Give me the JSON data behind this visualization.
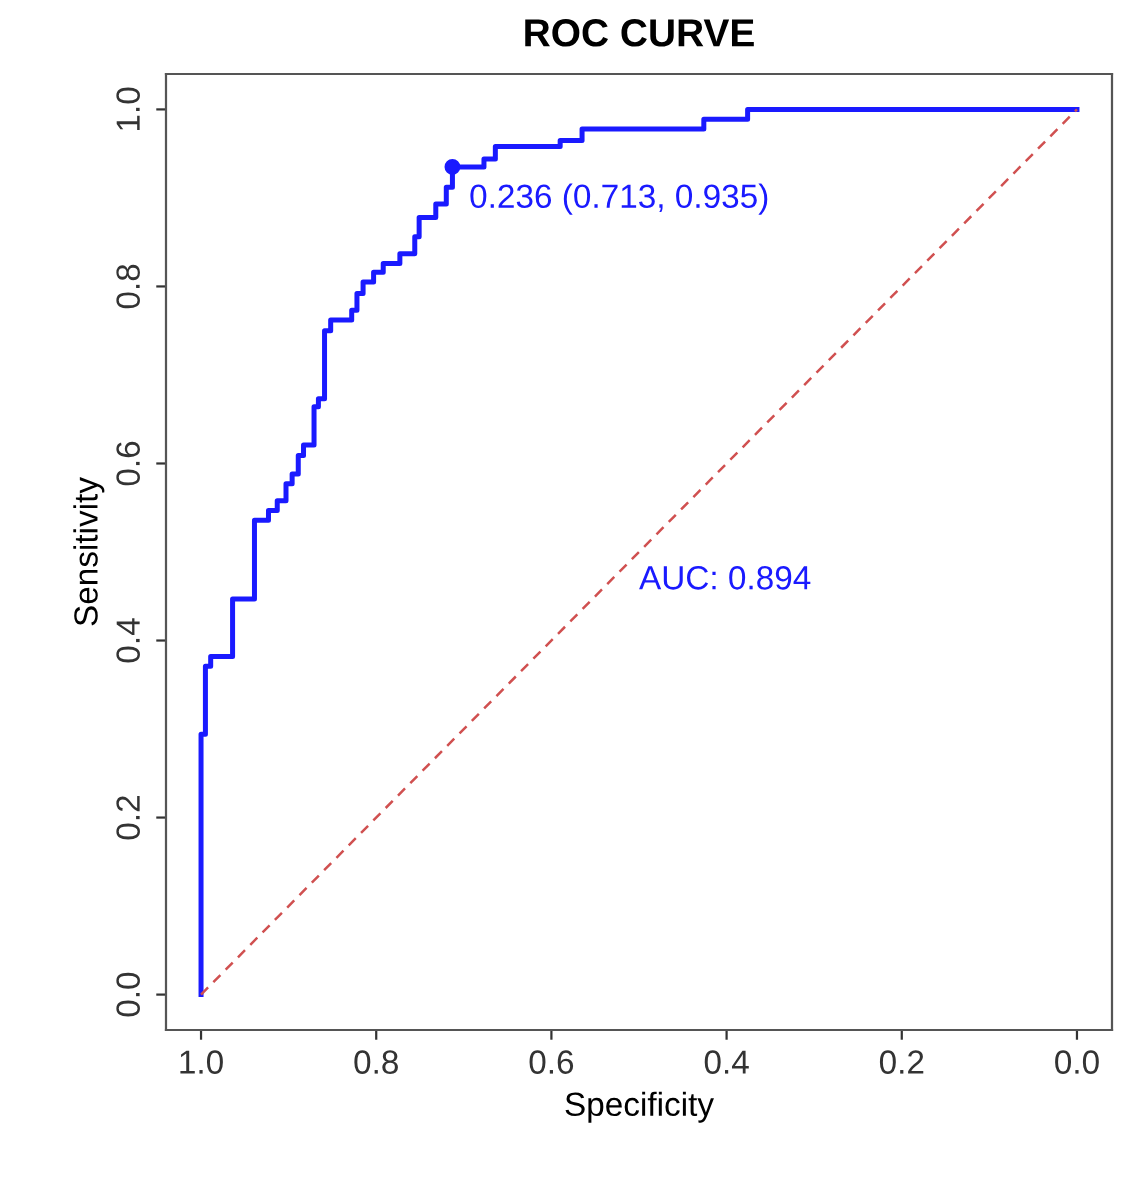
{
  "chart_data": {
    "type": "step",
    "title": "ROC CURVE",
    "xlabel": "Specificity",
    "ylabel": "Sensitivity",
    "xlim": [
      1.04,
      -0.04
    ],
    "ylim": [
      -0.04,
      1.04
    ],
    "xticks": [
      {
        "value": 1.0,
        "label": "1.0"
      },
      {
        "value": 0.8,
        "label": "0.8"
      },
      {
        "value": 0.6,
        "label": "0.6"
      },
      {
        "value": 0.4,
        "label": "0.4"
      },
      {
        "value": 0.2,
        "label": "0.2"
      },
      {
        "value": 0.0,
        "label": "0.0"
      }
    ],
    "yticks": [
      {
        "value": 0.0,
        "label": "0.0"
      },
      {
        "value": 0.2,
        "label": "0.2"
      },
      {
        "value": 0.4,
        "label": "0.4"
      },
      {
        "value": 0.6,
        "label": "0.6"
      },
      {
        "value": 0.8,
        "label": "0.8"
      },
      {
        "value": 1.0,
        "label": "1.0"
      }
    ],
    "grid": false,
    "legend": false,
    "series": [
      {
        "color": "#1a1aff",
        "x": [
          1.0,
          1.0,
          0.995,
          0.989,
          0.964,
          0.939,
          0.923,
          0.913,
          0.903,
          0.896,
          0.889,
          0.883,
          0.871,
          0.866,
          0.859,
          0.852,
          0.828,
          0.822,
          0.815,
          0.803,
          0.792,
          0.773,
          0.756,
          0.751,
          0.732,
          0.72,
          0.713,
          0.677,
          0.664,
          0.59,
          0.565,
          0.426,
          0.376,
          0.0
        ],
        "values": [
          0.0,
          0.294,
          0.371,
          0.382,
          0.447,
          0.536,
          0.547,
          0.558,
          0.577,
          0.588,
          0.609,
          0.621,
          0.664,
          0.673,
          0.75,
          0.762,
          0.773,
          0.792,
          0.805,
          0.816,
          0.826,
          0.837,
          0.856,
          0.878,
          0.893,
          0.912,
          0.935,
          0.944,
          0.958,
          0.965,
          0.978,
          0.989,
          1.0,
          1.0
        ]
      },
      {
        "type": "line",
        "color": "#d05050",
        "line_style": "dashed",
        "x": [
          1.0,
          0.0
        ],
        "values": [
          0.0,
          1.0
        ]
      },
      {
        "type": "scatter",
        "color": "#1a1aff",
        "marker": "circle",
        "x": [
          0.713
        ],
        "values": [
          0.935
        ]
      }
    ],
    "annotations": [
      {
        "text": "0.236 (0.713, 0.935)",
        "x": 0.713,
        "y": 0.935
      },
      "AUC: 0.894"
    ]
  }
}
